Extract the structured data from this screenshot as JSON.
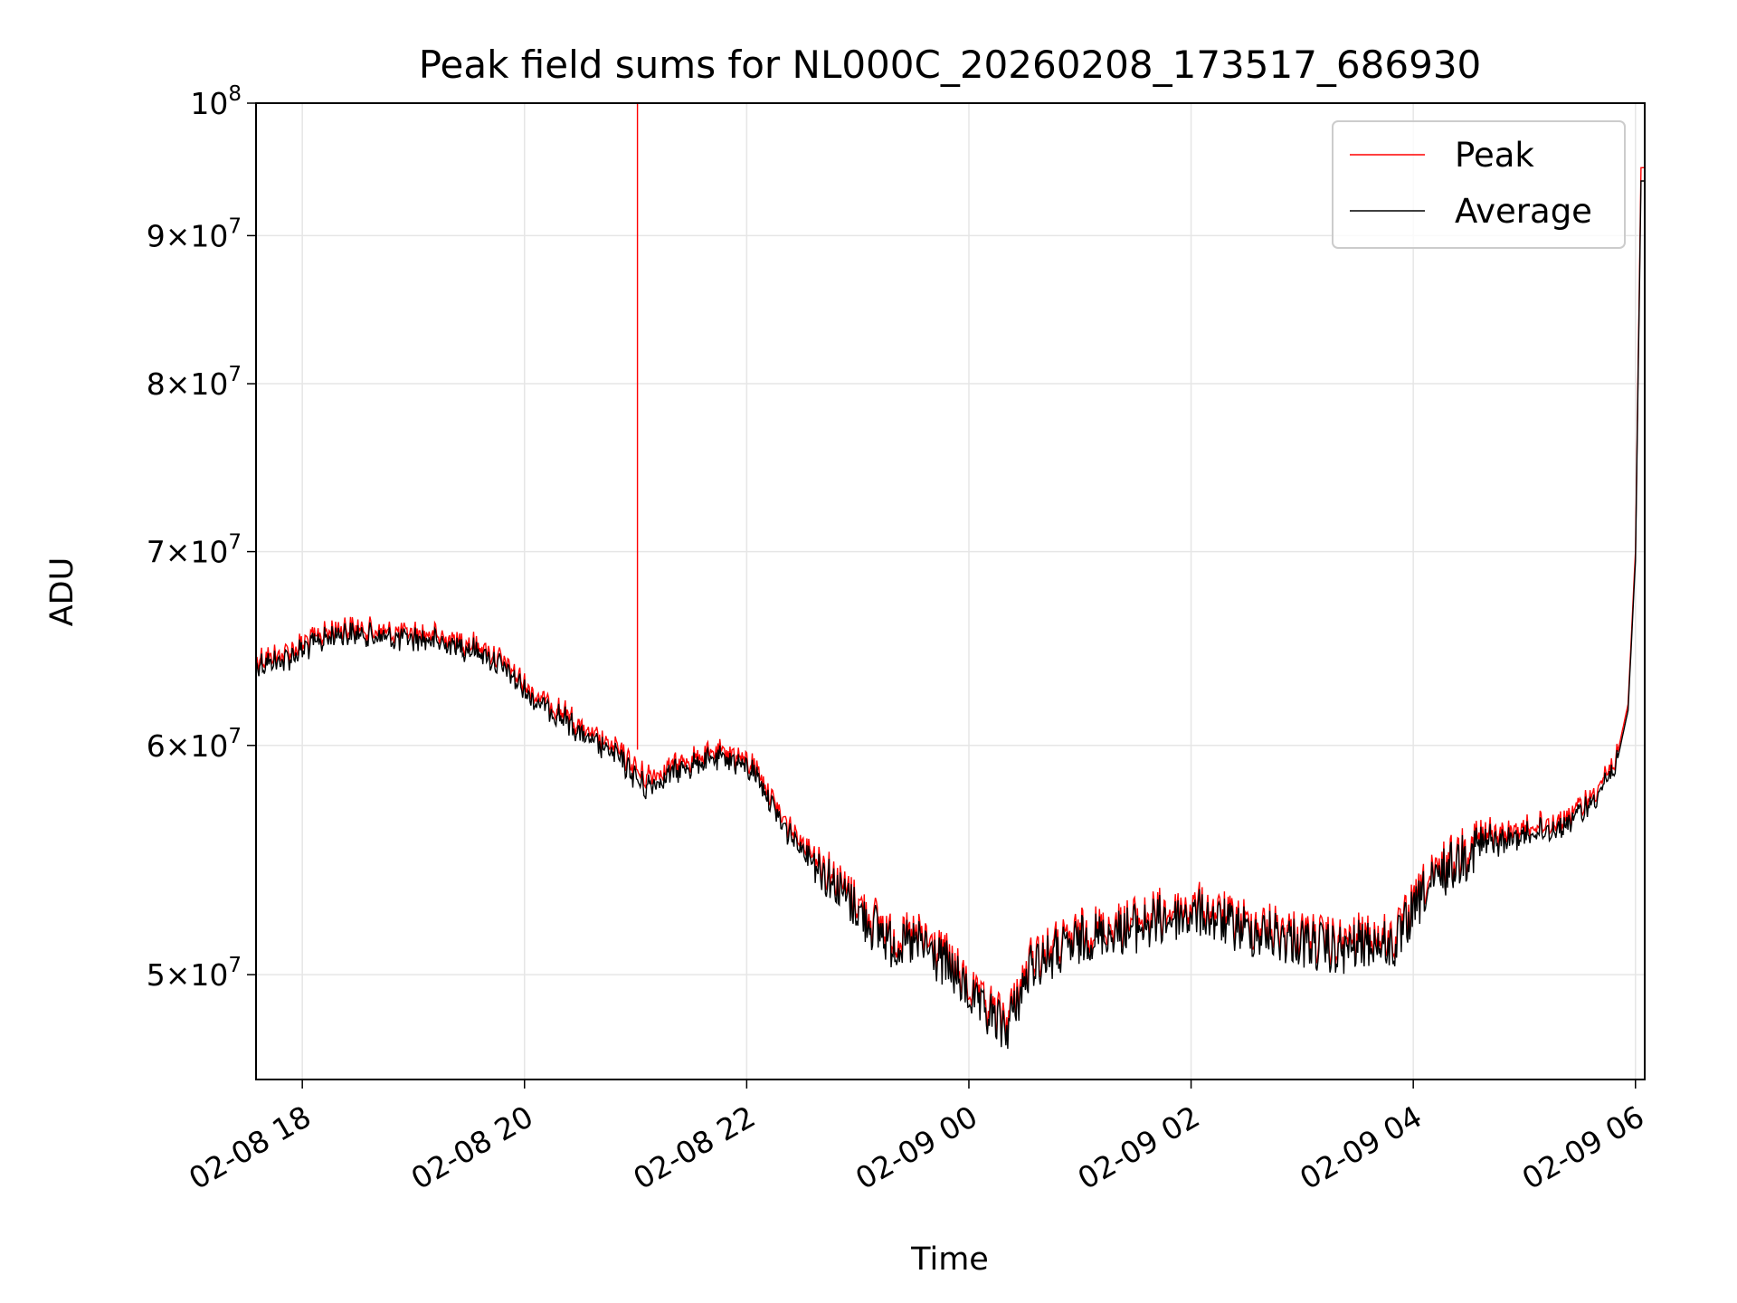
{
  "chart_data": {
    "type": "line",
    "title": "Peak field sums for NL000C_20260208_173517_686930",
    "xlabel": "Time",
    "ylabel": "ADU",
    "y_scale": "log",
    "ylim": [
      46000000,
      100000000
    ],
    "xlim": [
      "2026-02-08 17:35",
      "2026-02-09 06:05"
    ],
    "grid": true,
    "legend_position": "top-right",
    "x_ticks": [
      {
        "t": "2026-02-08 18:00",
        "label": "02-08 18"
      },
      {
        "t": "2026-02-08 20:00",
        "label": "02-08 20"
      },
      {
        "t": "2026-02-08 22:00",
        "label": "02-08 22"
      },
      {
        "t": "2026-02-09 00:00",
        "label": "02-09 00"
      },
      {
        "t": "2026-02-09 02:00",
        "label": "02-09 02"
      },
      {
        "t": "2026-02-09 04:00",
        "label": "02-09 04"
      },
      {
        "t": "2026-02-09 06:00",
        "label": "02-09 06"
      }
    ],
    "y_ticks": [
      {
        "value": 50000000,
        "mantissa": "5",
        "base": "10",
        "exp": "7"
      },
      {
        "value": 60000000,
        "mantissa": "6",
        "base": "10",
        "exp": "7"
      },
      {
        "value": 70000000,
        "mantissa": "7",
        "base": "10",
        "exp": "7"
      },
      {
        "value": 80000000,
        "mantissa": "8",
        "base": "10",
        "exp": "7"
      },
      {
        "value": 90000000,
        "mantissa": "9",
        "base": "10",
        "exp": "7"
      },
      {
        "value": 100000000,
        "mantissa": "",
        "base": "10",
        "exp": "8"
      }
    ],
    "series": [
      {
        "name": "Peak",
        "color": "#ff0000",
        "x": [
          "2026-02-08 17:35",
          "2026-02-08 17:50",
          "2026-02-08 18:05",
          "2026-02-08 18:20",
          "2026-02-08 18:35",
          "2026-02-08 18:50",
          "2026-02-08 19:05",
          "2026-02-08 19:20",
          "2026-02-08 19:35",
          "2026-02-08 19:50",
          "2026-02-08 20:05",
          "2026-02-08 20:20",
          "2026-02-08 20:35",
          "2026-02-08 20:50",
          "2026-02-08 21:05",
          "2026-02-08 21:20",
          "2026-02-08 21:35",
          "2026-02-08 21:50",
          "2026-02-08 22:05",
          "2026-02-08 22:20",
          "2026-02-08 22:35",
          "2026-02-08 22:50",
          "2026-02-08 23:05",
          "2026-02-08 23:20",
          "2026-02-08 23:35",
          "2026-02-08 23:50",
          "2026-02-09 00:05",
          "2026-02-09 00:20",
          "2026-02-09 00:35",
          "2026-02-09 00:50",
          "2026-02-09 01:05",
          "2026-02-09 01:20",
          "2026-02-09 01:35",
          "2026-02-09 01:50",
          "2026-02-09 02:05",
          "2026-02-09 02:20",
          "2026-02-09 02:35",
          "2026-02-09 02:50",
          "2026-02-09 03:05",
          "2026-02-09 03:20",
          "2026-02-09 03:35",
          "2026-02-09 03:50",
          "2026-02-09 04:05",
          "2026-02-09 04:20",
          "2026-02-09 04:35",
          "2026-02-09 04:50",
          "2026-02-09 05:05",
          "2026-02-09 05:20",
          "2026-02-09 05:35",
          "2026-02-09 05:50",
          "2026-02-09 05:56",
          "2026-02-09 06:00",
          "2026-02-09 06:03"
        ],
        "values": [
          64300000,
          64500000,
          65300000,
          65900000,
          65800000,
          65600000,
          65600000,
          65300000,
          65000000,
          64000000,
          62500000,
          61700000,
          60500000,
          59800000,
          58500000,
          59000000,
          59500000,
          59700000,
          59000000,
          56500000,
          55200000,
          53800000,
          52500000,
          51500000,
          51500000,
          50500000,
          49000000,
          48200000,
          50800000,
          51200000,
          51800000,
          52000000,
          52300000,
          52600000,
          52800000,
          52300000,
          52000000,
          51800000,
          51500000,
          51200000,
          51600000,
          51400000,
          53500000,
          54800000,
          55700000,
          55900000,
          56300000,
          56500000,
          57500000,
          59500000,
          62000000,
          70000000,
          95000000
        ],
        "spike": {
          "t": "2026-02-08 21:01",
          "value": 100000000
        }
      },
      {
        "name": "Average",
        "color": "#000000",
        "x": [
          "2026-02-08 17:35",
          "2026-02-08 17:50",
          "2026-02-08 18:05",
          "2026-02-08 18:20",
          "2026-02-08 18:35",
          "2026-02-08 18:50",
          "2026-02-08 19:05",
          "2026-02-08 19:20",
          "2026-02-08 19:35",
          "2026-02-08 19:50",
          "2026-02-08 20:05",
          "2026-02-08 20:20",
          "2026-02-08 20:35",
          "2026-02-08 20:50",
          "2026-02-08 21:05",
          "2026-02-08 21:20",
          "2026-02-08 21:35",
          "2026-02-08 21:50",
          "2026-02-08 22:05",
          "2026-02-08 22:20",
          "2026-02-08 22:35",
          "2026-02-08 22:50",
          "2026-02-08 23:05",
          "2026-02-08 23:20",
          "2026-02-08 23:35",
          "2026-02-08 23:50",
          "2026-02-09 00:05",
          "2026-02-09 00:20",
          "2026-02-09 00:35",
          "2026-02-09 00:50",
          "2026-02-09 01:05",
          "2026-02-09 01:20",
          "2026-02-09 01:35",
          "2026-02-09 01:50",
          "2026-02-09 02:05",
          "2026-02-09 02:20",
          "2026-02-09 02:35",
          "2026-02-09 02:50",
          "2026-02-09 03:05",
          "2026-02-09 03:20",
          "2026-02-09 03:35",
          "2026-02-09 03:50",
          "2026-02-09 04:05",
          "2026-02-09 04:20",
          "2026-02-09 04:35",
          "2026-02-09 04:50",
          "2026-02-09 05:05",
          "2026-02-09 05:20",
          "2026-02-09 05:35",
          "2026-02-09 05:50",
          "2026-02-09 05:56",
          "2026-02-09 06:00",
          "2026-02-09 06:03"
        ],
        "values": [
          64000000,
          64200000,
          65000000,
          65600000,
          65500000,
          65300000,
          65300000,
          65000000,
          64700000,
          63700000,
          62200000,
          61400000,
          60200000,
          59500000,
          58000000,
          58700000,
          59200000,
          59400000,
          58700000,
          56200000,
          54900000,
          53500000,
          52200000,
          51200000,
          51200000,
          50200000,
          48700000,
          47900000,
          50500000,
          50900000,
          51500000,
          51700000,
          52000000,
          52300000,
          52500000,
          52000000,
          51700000,
          51500000,
          51200000,
          50900000,
          51300000,
          51100000,
          53200000,
          54500000,
          55400000,
          55600000,
          56000000,
          56200000,
          57200000,
          59200000,
          61700000,
          69500000,
          94000000
        ]
      }
    ]
  }
}
